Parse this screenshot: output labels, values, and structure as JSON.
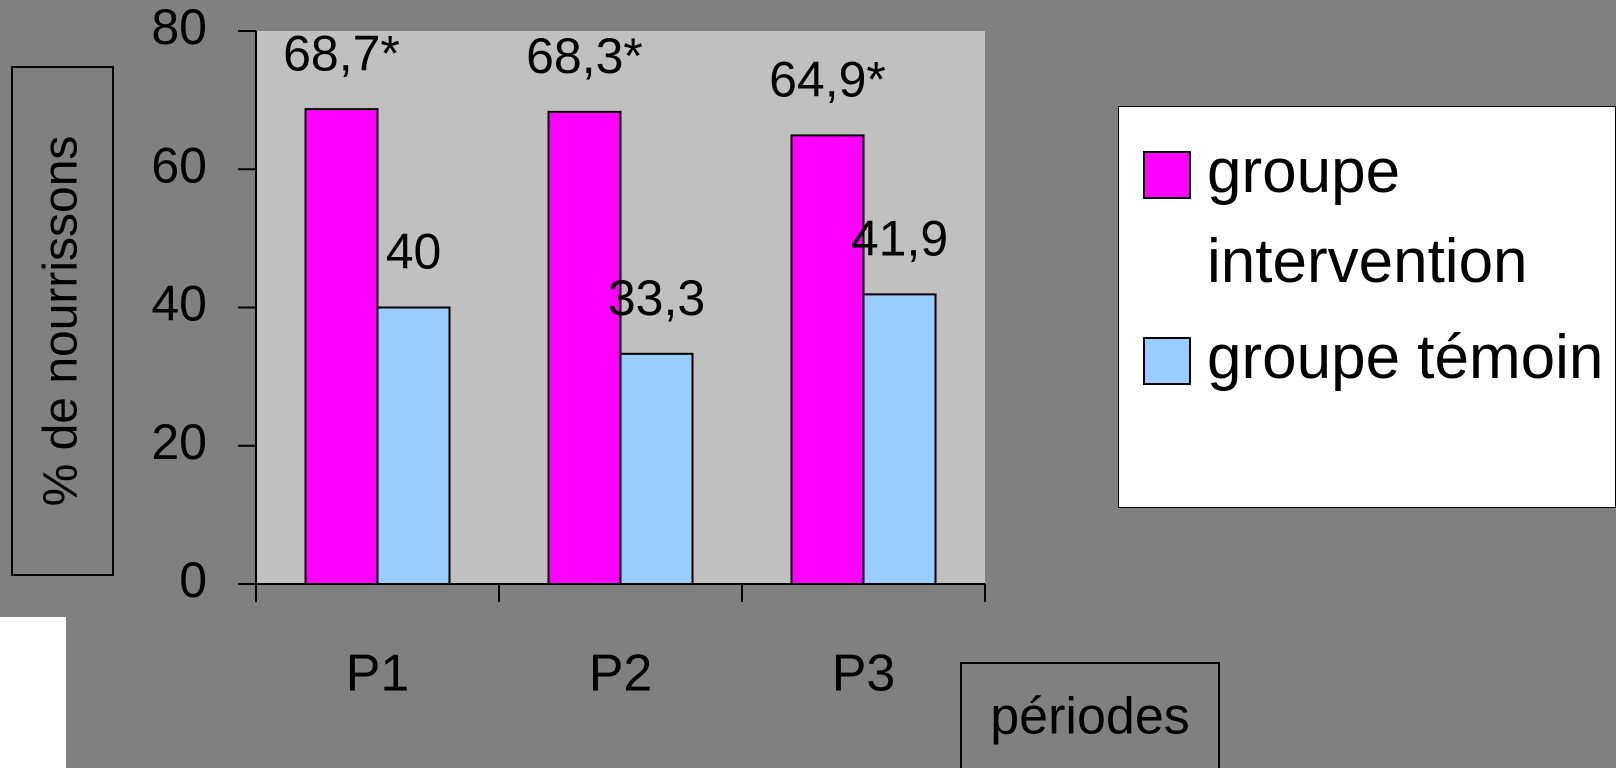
{
  "chart_data": {
    "type": "bar",
    "categories": [
      "P1",
      "P2",
      "P3"
    ],
    "series": [
      {
        "name": "groupe intervention",
        "color": "#ff00ff",
        "values": [
          68.7,
          68.3,
          64.9
        ],
        "value_labels": [
          "68,7*",
          "68,3*",
          "64,9*"
        ]
      },
      {
        "name": "groupe témoin",
        "color": "#99ccff",
        "values": [
          40,
          33.3,
          41.9
        ],
        "value_labels": [
          "40",
          "33,3",
          "41,9"
        ]
      }
    ],
    "ylim": [
      0,
      80
    ],
    "yticks": [
      0,
      20,
      40,
      60,
      80
    ],
    "y_label": "% de nourrissons",
    "x_label": "périodes"
  }
}
